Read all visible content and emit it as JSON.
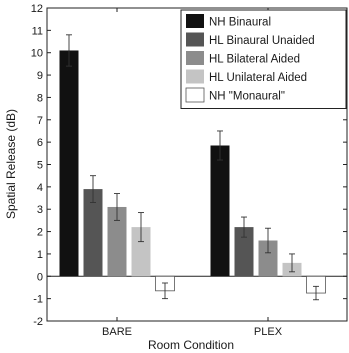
{
  "chart_data": {
    "type": "bar",
    "title": "",
    "xlabel": "Room Condition",
    "ylabel": "Spatial Release (dB)",
    "ylim": [
      -2,
      12
    ],
    "yticks": [
      -2,
      -1,
      0,
      1,
      2,
      3,
      4,
      5,
      6,
      7,
      8,
      9,
      10,
      11,
      12
    ],
    "categories": [
      "BARE",
      "PLEX"
    ],
    "grid": false,
    "legend_position": "top-right",
    "series": [
      {
        "name": "NH Binaural",
        "color": "#111111",
        "values": [
          10.1,
          5.85
        ],
        "errors": [
          0.7,
          0.65
        ]
      },
      {
        "name": "HL Binaural Unaided",
        "color": "#555555",
        "values": [
          3.9,
          2.2
        ],
        "errors": [
          0.6,
          0.45
        ]
      },
      {
        "name": "HL Bilateral Aided",
        "color": "#8c8c8c",
        "values": [
          3.1,
          1.6
        ],
        "errors": [
          0.6,
          0.55
        ]
      },
      {
        "name": "HL Unilateral Aided",
        "color": "#c4c4c4",
        "values": [
          2.2,
          0.6
        ],
        "errors": [
          0.65,
          0.4
        ]
      },
      {
        "name": "NH \"Monaural\"",
        "color": "#ffffff",
        "values": [
          -0.65,
          -0.75
        ],
        "errors": [
          0.35,
          0.3
        ]
      }
    ]
  }
}
